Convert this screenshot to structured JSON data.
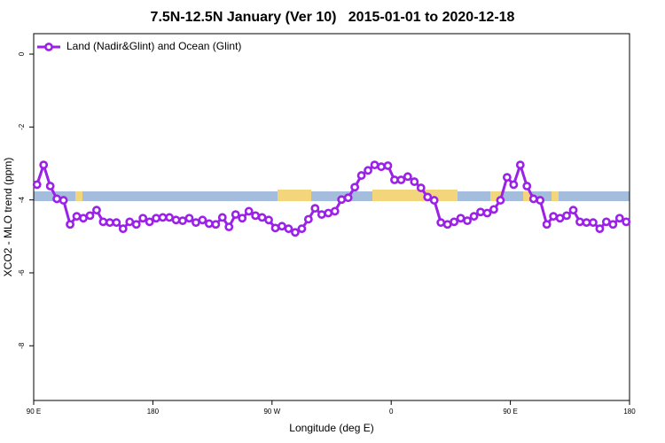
{
  "chart_data": {
    "type": "line",
    "title": "7.5N-12.5N January (Ver 10)   2015-01-01 to 2020-12-18",
    "x_label": "Longitude (deg E)",
    "y_label": "XCO2 - MLO trend (ppm)",
    "xlim": [
      90,
      540
    ],
    "ylim": [
      -9.5,
      0.56
    ],
    "xticks": [
      {
        "value": 90,
        "label": "90 E"
      },
      180,
      {
        "value": 270,
        "label": "90 W"
      },
      {
        "value": 360,
        "label": "0"
      },
      {
        "value": 450,
        "label": "90 E"
      },
      {
        "value": 540,
        "label": "180"
      }
    ],
    "yticks": [
      0,
      -2,
      -4,
      -6,
      -8
    ],
    "legend": "top-left",
    "x": [
      92.5,
      97.5,
      102.5,
      107.5,
      112.5,
      117.5,
      122.5,
      127.5,
      132.5,
      137.5,
      142.5,
      147.5,
      152.5,
      157.5,
      162.5,
      167.5,
      172.5,
      177.5,
      182.5,
      187.5,
      192.5,
      197.5,
      202.5,
      207.5,
      212.5,
      217.5,
      222.5,
      227.5,
      232.5,
      237.5,
      242.5,
      247.5,
      252.5,
      257.5,
      262.5,
      267.5,
      272.5,
      277.5,
      282.5,
      287.5,
      292.5,
      297.5,
      302.5,
      307.5,
      312.5,
      317.5,
      322.5,
      327.5,
      332.5,
      337.5,
      342.5,
      347.5,
      352.5,
      357.5,
      362.5,
      367.5,
      372.5,
      377.5,
      382.5,
      387.5,
      392.5,
      397.5,
      402.5,
      407.5,
      412.5,
      417.5,
      422.5,
      427.5,
      432.5,
      437.5,
      442.5,
      447.5,
      452.5,
      457.5,
      462.5,
      467.5,
      472.5,
      477.5,
      482.5,
      487.5,
      492.5,
      497.5,
      502.5,
      507.5,
      512.5,
      517.5,
      522.5,
      527.5,
      532.5,
      537.5
    ],
    "series": [
      {
        "name": "Land (Nadir&Glint) and Ocean (Glint)",
        "color": "#9b20e8",
        "values": [
          -3.58,
          -3.04,
          -3.62,
          -3.97,
          -4.01,
          -4.67,
          -4.45,
          -4.5,
          -4.43,
          -4.28,
          -4.6,
          -4.62,
          -4.62,
          -4.79,
          -4.6,
          -4.67,
          -4.5,
          -4.6,
          -4.5,
          -4.48,
          -4.48,
          -4.55,
          -4.57,
          -4.5,
          -4.62,
          -4.55,
          -4.65,
          -4.67,
          -4.48,
          -4.74,
          -4.4,
          -4.5,
          -4.31,
          -4.43,
          -4.48,
          -4.55,
          -4.77,
          -4.72,
          -4.79,
          -4.89,
          -4.79,
          -4.53,
          -4.23,
          -4.4,
          -4.36,
          -4.31,
          -3.99,
          -3.94,
          -3.65,
          -3.33,
          -3.19,
          -3.04,
          -3.09,
          -3.06,
          -3.45,
          -3.45,
          -3.36,
          -3.5,
          -3.67,
          -3.92,
          -4.01,
          -4.62,
          -4.67,
          -4.6,
          -4.5,
          -4.57,
          -4.45,
          -4.33,
          -4.36,
          -4.26,
          -4.01,
          -3.38,
          -3.58,
          -3.04,
          -3.62,
          -3.97,
          -4.01,
          -4.67,
          -4.45,
          -4.5,
          -4.43,
          -4.28,
          -4.6,
          -4.62,
          -4.62,
          -4.79,
          -4.6,
          -4.67,
          -4.5,
          -4.6
        ]
      }
    ]
  }
}
